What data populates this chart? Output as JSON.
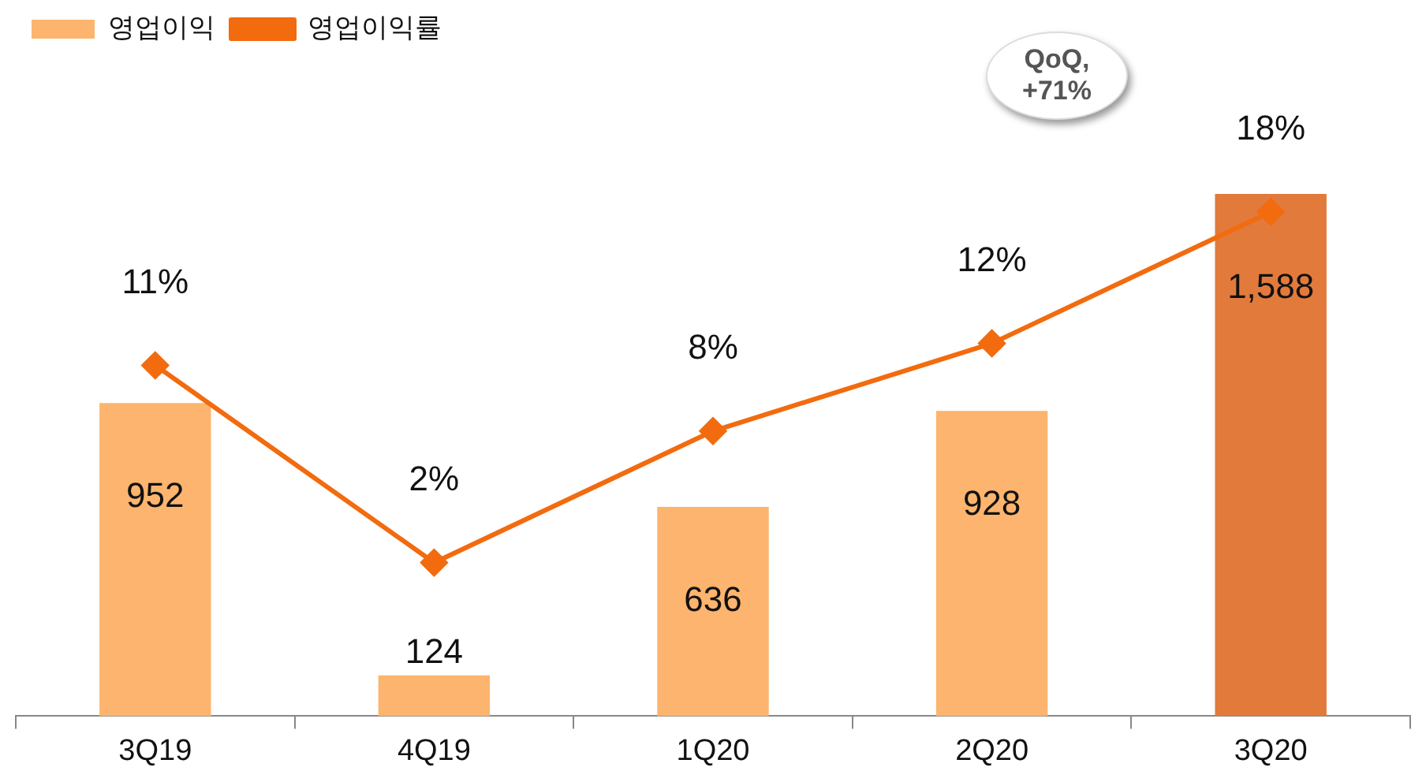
{
  "chart_data": {
    "type": "bar",
    "categories": [
      "3Q19",
      "4Q19",
      "1Q20",
      "2Q20",
      "3Q20"
    ],
    "series": [
      {
        "name": "영업이익",
        "colors": [
          "#fdb46e",
          "#fdb46e",
          "#fdb46e",
          "#fdb46e",
          "#e27a3c"
        ],
        "values": [
          952,
          124,
          636,
          928,
          1588
        ],
        "value_labels": [
          "952",
          "124",
          "636",
          "928",
          "1,588"
        ]
      },
      {
        "name": "영업이익률",
        "type": "line",
        "axis": "y2",
        "color": "#f26b0f",
        "values": [
          11,
          2,
          8,
          12,
          18
        ],
        "value_labels": [
          "11%",
          "2%",
          "8%",
          "12%",
          "18%"
        ]
      }
    ],
    "tick_labels": "x",
    "grid": false,
    "legend": "top left",
    "marker": "diamond",
    "line_style": "solid",
    "annotations": [
      "QoQ, +71%"
    ]
  }
}
